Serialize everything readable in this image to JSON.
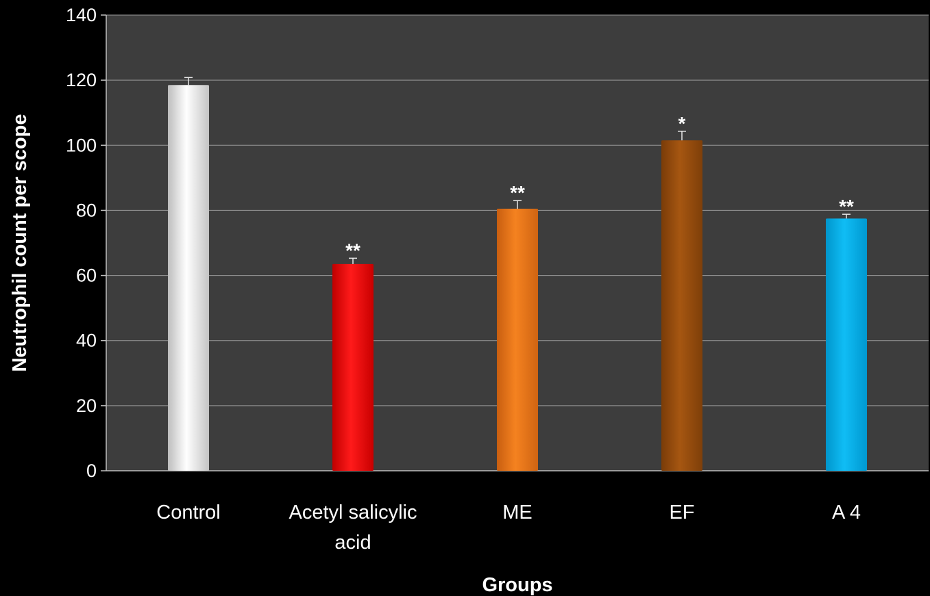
{
  "chart_data": {
    "type": "bar",
    "title": "",
    "xlabel": "Groups",
    "ylabel": "Neutrophil count per scope",
    "ylim": [
      0,
      140
    ],
    "yticks": [
      0,
      20,
      40,
      60,
      80,
      100,
      120,
      140
    ],
    "grid": true,
    "legend": "none",
    "categories": [
      [
        "Control"
      ],
      [
        "Acetyl salicylic",
        "acid"
      ],
      [
        "ME"
      ],
      [
        "EF"
      ],
      [
        "A 4"
      ]
    ],
    "values": [
      118.5,
      63.5,
      80.5,
      101.5,
      77.5
    ],
    "errors": [
      2.3,
      1.8,
      2.5,
      2.8,
      1.3
    ],
    "significance": [
      "",
      "**",
      "**",
      "*",
      "**"
    ],
    "colors": {
      "Control": "#dcdcdc",
      "Acetyl salicylic acid": "#ff0000",
      "ME": "#f07818",
      "EF": "#a0520f",
      "A 4": "#00b4ef"
    }
  }
}
